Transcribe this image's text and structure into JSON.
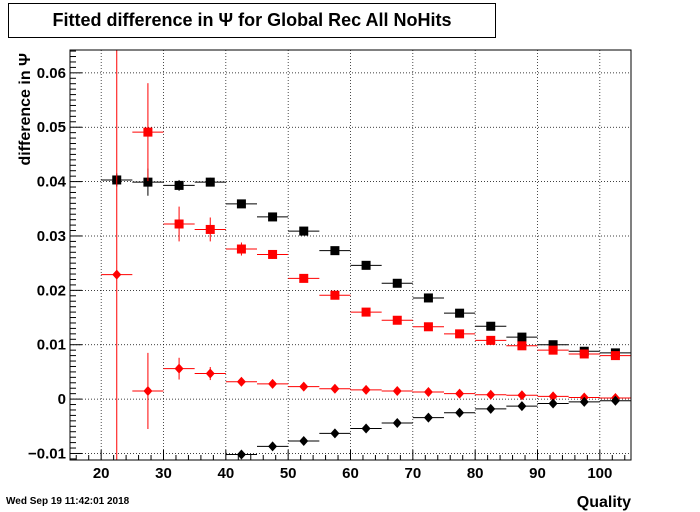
{
  "title": "Fitted difference in  Ψ  for Global Rec All NoHits",
  "footer": "Wed Sep 19 11:42:01 2018",
  "chart_data": {
    "type": "scatter",
    "xlabel": "Quality",
    "ylabel": "difference in  Ψ",
    "xlim": [
      15,
      105
    ],
    "ylim": [
      -0.0112,
      0.0642
    ],
    "grid": true,
    "x_ticks": [
      20,
      30,
      40,
      50,
      60,
      70,
      80,
      90,
      100
    ],
    "x_tick_labels": [
      "20",
      "30",
      "40",
      "50",
      "60",
      "70",
      "80",
      "90",
      "100"
    ],
    "y_ticks": [
      -0.01,
      0,
      0.01,
      0.02,
      0.03,
      0.04,
      0.05,
      0.06
    ],
    "y_tick_labels": [
      "−0.01",
      "0",
      "0.01",
      "0.02",
      "0.03",
      "0.04",
      "0.05",
      "0.06"
    ],
    "series": [
      {
        "color": "#000000",
        "marker": "square",
        "x": [
          22.5,
          27.5,
          32.5,
          37.5,
          42.5,
          47.5,
          52.5,
          57.5,
          62.5,
          67.5,
          72.5,
          77.5,
          82.5,
          87.5,
          92.5,
          97.5,
          102.5
        ],
        "y": [
          0.0403,
          0.0399,
          0.0393,
          0.0399,
          0.0359,
          0.0335,
          0.0309,
          0.0273,
          0.0246,
          0.0213,
          0.0186,
          0.0158,
          0.0134,
          0.0114,
          0.01,
          0.0088,
          0.0085
        ],
        "yerr": [
          0.0012,
          0.0025,
          0.001,
          0.0008,
          0.0006,
          0.0005,
          0.0005,
          0.0004,
          0.0004,
          0.0004,
          0.0003,
          0.0003,
          0.0003,
          0.0003,
          0.0003,
          0.0002,
          0.0002
        ]
      },
      {
        "color": "#ff0000",
        "marker": "square",
        "x": [
          27.5,
          32.5,
          37.5,
          42.5,
          47.5,
          52.5,
          57.5,
          62.5,
          67.5,
          72.5,
          77.5,
          82.5,
          87.5,
          92.5,
          97.5,
          102.5
        ],
        "y": [
          0.0491,
          0.0322,
          0.0312,
          0.0276,
          0.0266,
          0.0222,
          0.0191,
          0.016,
          0.0145,
          0.0133,
          0.012,
          0.0108,
          0.0098,
          0.009,
          0.0083,
          0.008
        ],
        "yerr": [
          0.009,
          0.0032,
          0.0022,
          0.0012,
          0.0008,
          0.0006,
          0.0005,
          0.0004,
          0.0004,
          0.0003,
          0.0003,
          0.0003,
          0.0003,
          0.0002,
          0.0002,
          0.0002
        ]
      },
      {
        "color": "#ff0000",
        "marker": "diamond",
        "x": [
          22.5,
          27.5,
          32.5,
          37.5,
          42.5,
          47.5,
          52.5,
          57.5,
          62.5,
          67.5,
          72.5,
          77.5,
          82.5,
          87.5,
          92.5,
          97.5,
          102.5
        ],
        "y": [
          0.0229,
          0.0015,
          0.0056,
          0.0047,
          0.0032,
          0.0028,
          0.0023,
          0.0019,
          0.0017,
          0.0015,
          0.0013,
          0.001,
          0.0008,
          0.0007,
          0.0005,
          0.0003,
          0.0002
        ],
        "yerr": [
          0.06,
          0.007,
          0.002,
          0.0012,
          0.0006,
          0.0005,
          0.0004,
          0.0003,
          0.0003,
          0.0003,
          0.0002,
          0.0002,
          0.0002,
          0.0002,
          0.0002,
          0.0002,
          0.0002
        ]
      },
      {
        "color": "#000000",
        "marker": "diamond",
        "x": [
          42.5,
          47.5,
          52.5,
          57.5,
          62.5,
          67.5,
          72.5,
          77.5,
          82.5,
          87.5,
          92.5,
          97.5,
          102.5
        ],
        "y": [
          -0.0102,
          -0.0087,
          -0.0077,
          -0.0063,
          -0.0054,
          -0.0044,
          -0.0034,
          -0.0025,
          -0.0018,
          -0.0013,
          -0.0008,
          -0.0005,
          -0.0003
        ],
        "yerr": [
          0.0004,
          0.0004,
          0.0003,
          0.0003,
          0.0003,
          0.0003,
          0.0002,
          0.0002,
          0.0002,
          0.0002,
          0.0002,
          0.0002,
          0.0002
        ]
      }
    ]
  }
}
